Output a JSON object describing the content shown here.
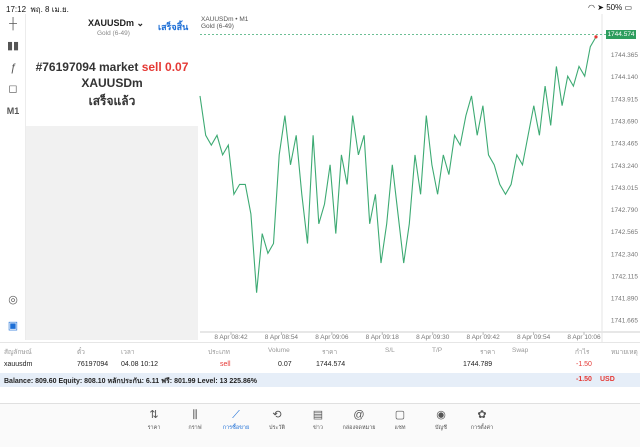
{
  "status": {
    "time": "17:12",
    "date": "พฤ. 8 เม.ย.",
    "battery": "50%"
  },
  "rail": {
    "items": [
      "crosshair-icon",
      "candles-icon",
      "function-icon",
      "objects-icon"
    ],
    "timeframe": "M1"
  },
  "order_panel": {
    "symbol": "XAUUSDm",
    "symbol_sub": "Gold (6-49)",
    "done_label": "เสร็จสิ้น",
    "order_prefix": "#76197094 market",
    "order_side": "sell 0.07",
    "order_symbol": "XAUUSDm",
    "order_status": "เสร็จแล้ว"
  },
  "chart_header": {
    "title": "XAUUSDm • M1",
    "subtitle": "Gold (6-49)"
  },
  "chart_data": {
    "type": "line",
    "price_labels": [
      "1744.365",
      "1744.140",
      "1743.915",
      "1743.690",
      "1743.465",
      "1743.240",
      "1743.015",
      "1742.790",
      "1742.565",
      "1742.340",
      "1742.115",
      "1741.890",
      "1741.665"
    ],
    "time_labels": [
      "8 Apr 08:42",
      "8 Apr 08:54",
      "8 Apr 09:06",
      "8 Apr 09:18",
      "8 Apr 09:30",
      "8 Apr 09:42",
      "8 Apr 09:54",
      "8 Apr 10:06"
    ],
    "ylim": [
      1741.55,
      1744.62
    ],
    "current_price": "1744.574",
    "line_color": "#3daa73",
    "values": [
      1743.95,
      1743.55,
      1743.45,
      1743.55,
      1743.35,
      1743.45,
      1742.95,
      1743.05,
      1743.05,
      1742.75,
      1741.95,
      1742.55,
      1742.35,
      1742.45,
      1743.35,
      1743.75,
      1743.25,
      1743.55,
      1742.95,
      1742.45,
      1743.55,
      1742.65,
      1742.85,
      1743.25,
      1742.55,
      1743.35,
      1743.05,
      1743.75,
      1743.35,
      1743.55,
      1742.65,
      1742.95,
      1742.25,
      1742.65,
      1743.25,
      1742.75,
      1742.25,
      1742.65,
      1743.35,
      1742.95,
      1743.75,
      1743.25,
      1742.95,
      1743.35,
      1743.15,
      1743.55,
      1743.45,
      1743.75,
      1743.95,
      1743.55,
      1743.85,
      1743.35,
      1743.25,
      1743.05,
      1742.95,
      1743.05,
      1743.35,
      1743.25,
      1743.55,
      1743.85,
      1743.55,
      1744.05,
      1743.65,
      1744.25,
      1743.85,
      1744.15,
      1744.05,
      1744.25,
      1744.15,
      1744.45,
      1744.55
    ]
  },
  "table": {
    "headers": [
      "สัญลักษณ์",
      "ตั๋ว",
      "เวลา",
      "ประเภท",
      "Volume",
      "ราคา",
      "S/L",
      "T/P",
      "ราคา",
      "Swap",
      "กำไร",
      "หมายเหตุ"
    ],
    "row": {
      "symbol": "xauusdm",
      "ticket": "76197094",
      "time": "04.08 10:12",
      "type": "sell",
      "volume": "0.07",
      "price": "1744.574",
      "current_price": "1744.789",
      "profit": "-1.50"
    }
  },
  "balance": {
    "text": "Balance: 809.60 Equity: 808.10 หลักประกัน: 6.11 ฟรี: 801.99 Level: 13 225.86%",
    "profit": "-1.50",
    "currency": "USD"
  },
  "nav": [
    {
      "label": "ราคา",
      "icon": "quotes-icon"
    },
    {
      "label": "กราฟ",
      "icon": "chart-icon"
    },
    {
      "label": "การซื้อขาย",
      "icon": "trade-icon"
    },
    {
      "label": "ประวัติ",
      "icon": "history-icon"
    },
    {
      "label": "ข่าว",
      "icon": "news-icon"
    },
    {
      "label": "กล่องจดหมาย",
      "icon": "mail-icon"
    },
    {
      "label": "แชท",
      "icon": "chat-icon"
    },
    {
      "label": "บัญชี",
      "icon": "account-icon"
    },
    {
      "label": "การตั้งค่า",
      "icon": "settings-icon"
    }
  ]
}
